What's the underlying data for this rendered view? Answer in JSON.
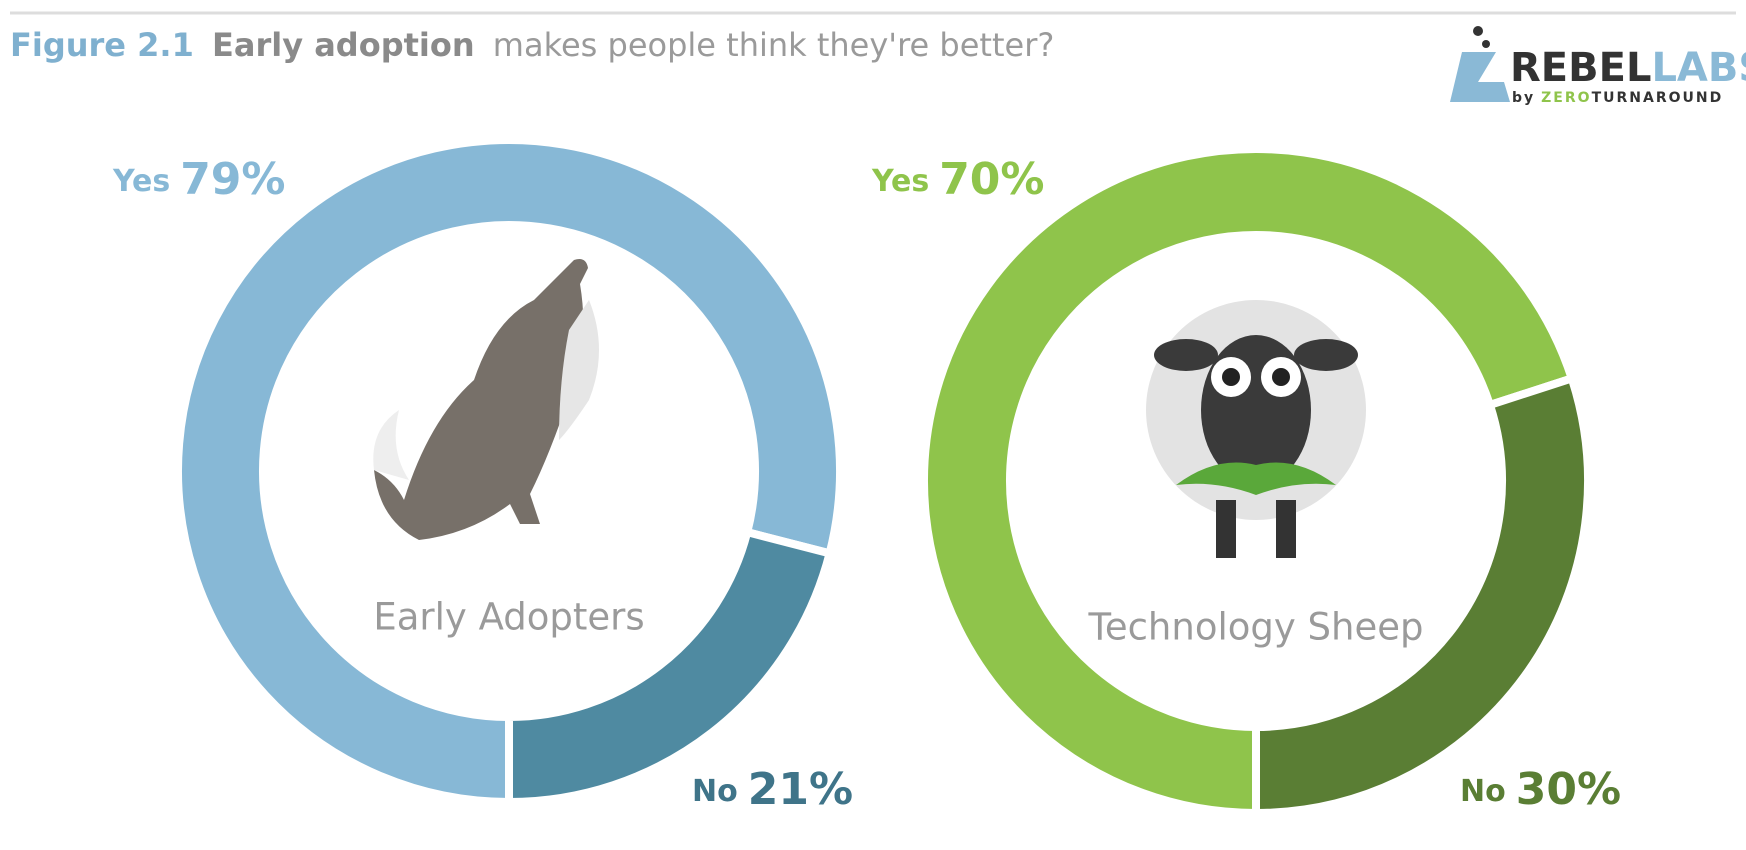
{
  "header": {
    "figure": "Figure 2.1",
    "emphasis": "Early adoption",
    "rest": "makes people think they're better?"
  },
  "logo": {
    "word_a": "REBEL",
    "word_b": "LABS",
    "by": "by",
    "brand_a": "ZERO",
    "brand_b": "TURNAROUND"
  },
  "chart_data": [
    {
      "type": "donut",
      "center_label": "Early Adopters",
      "categories": [
        "Yes",
        "No"
      ],
      "values": [
        79,
        21
      ],
      "value_labels": [
        "79%",
        "21%"
      ],
      "colors": [
        "#87b8d6",
        "#4f8aa1"
      ],
      "label_colors": [
        "#87b8d6",
        "#3f7489"
      ]
    },
    {
      "type": "donut",
      "center_label": "Technology Sheep",
      "categories": [
        "Yes",
        "No"
      ],
      "values": [
        70,
        30
      ],
      "value_labels": [
        "70%",
        "30%"
      ],
      "colors": [
        "#8fc44b",
        "#5a7e34"
      ],
      "label_colors": [
        "#8fc44b",
        "#5a7e34"
      ]
    }
  ]
}
